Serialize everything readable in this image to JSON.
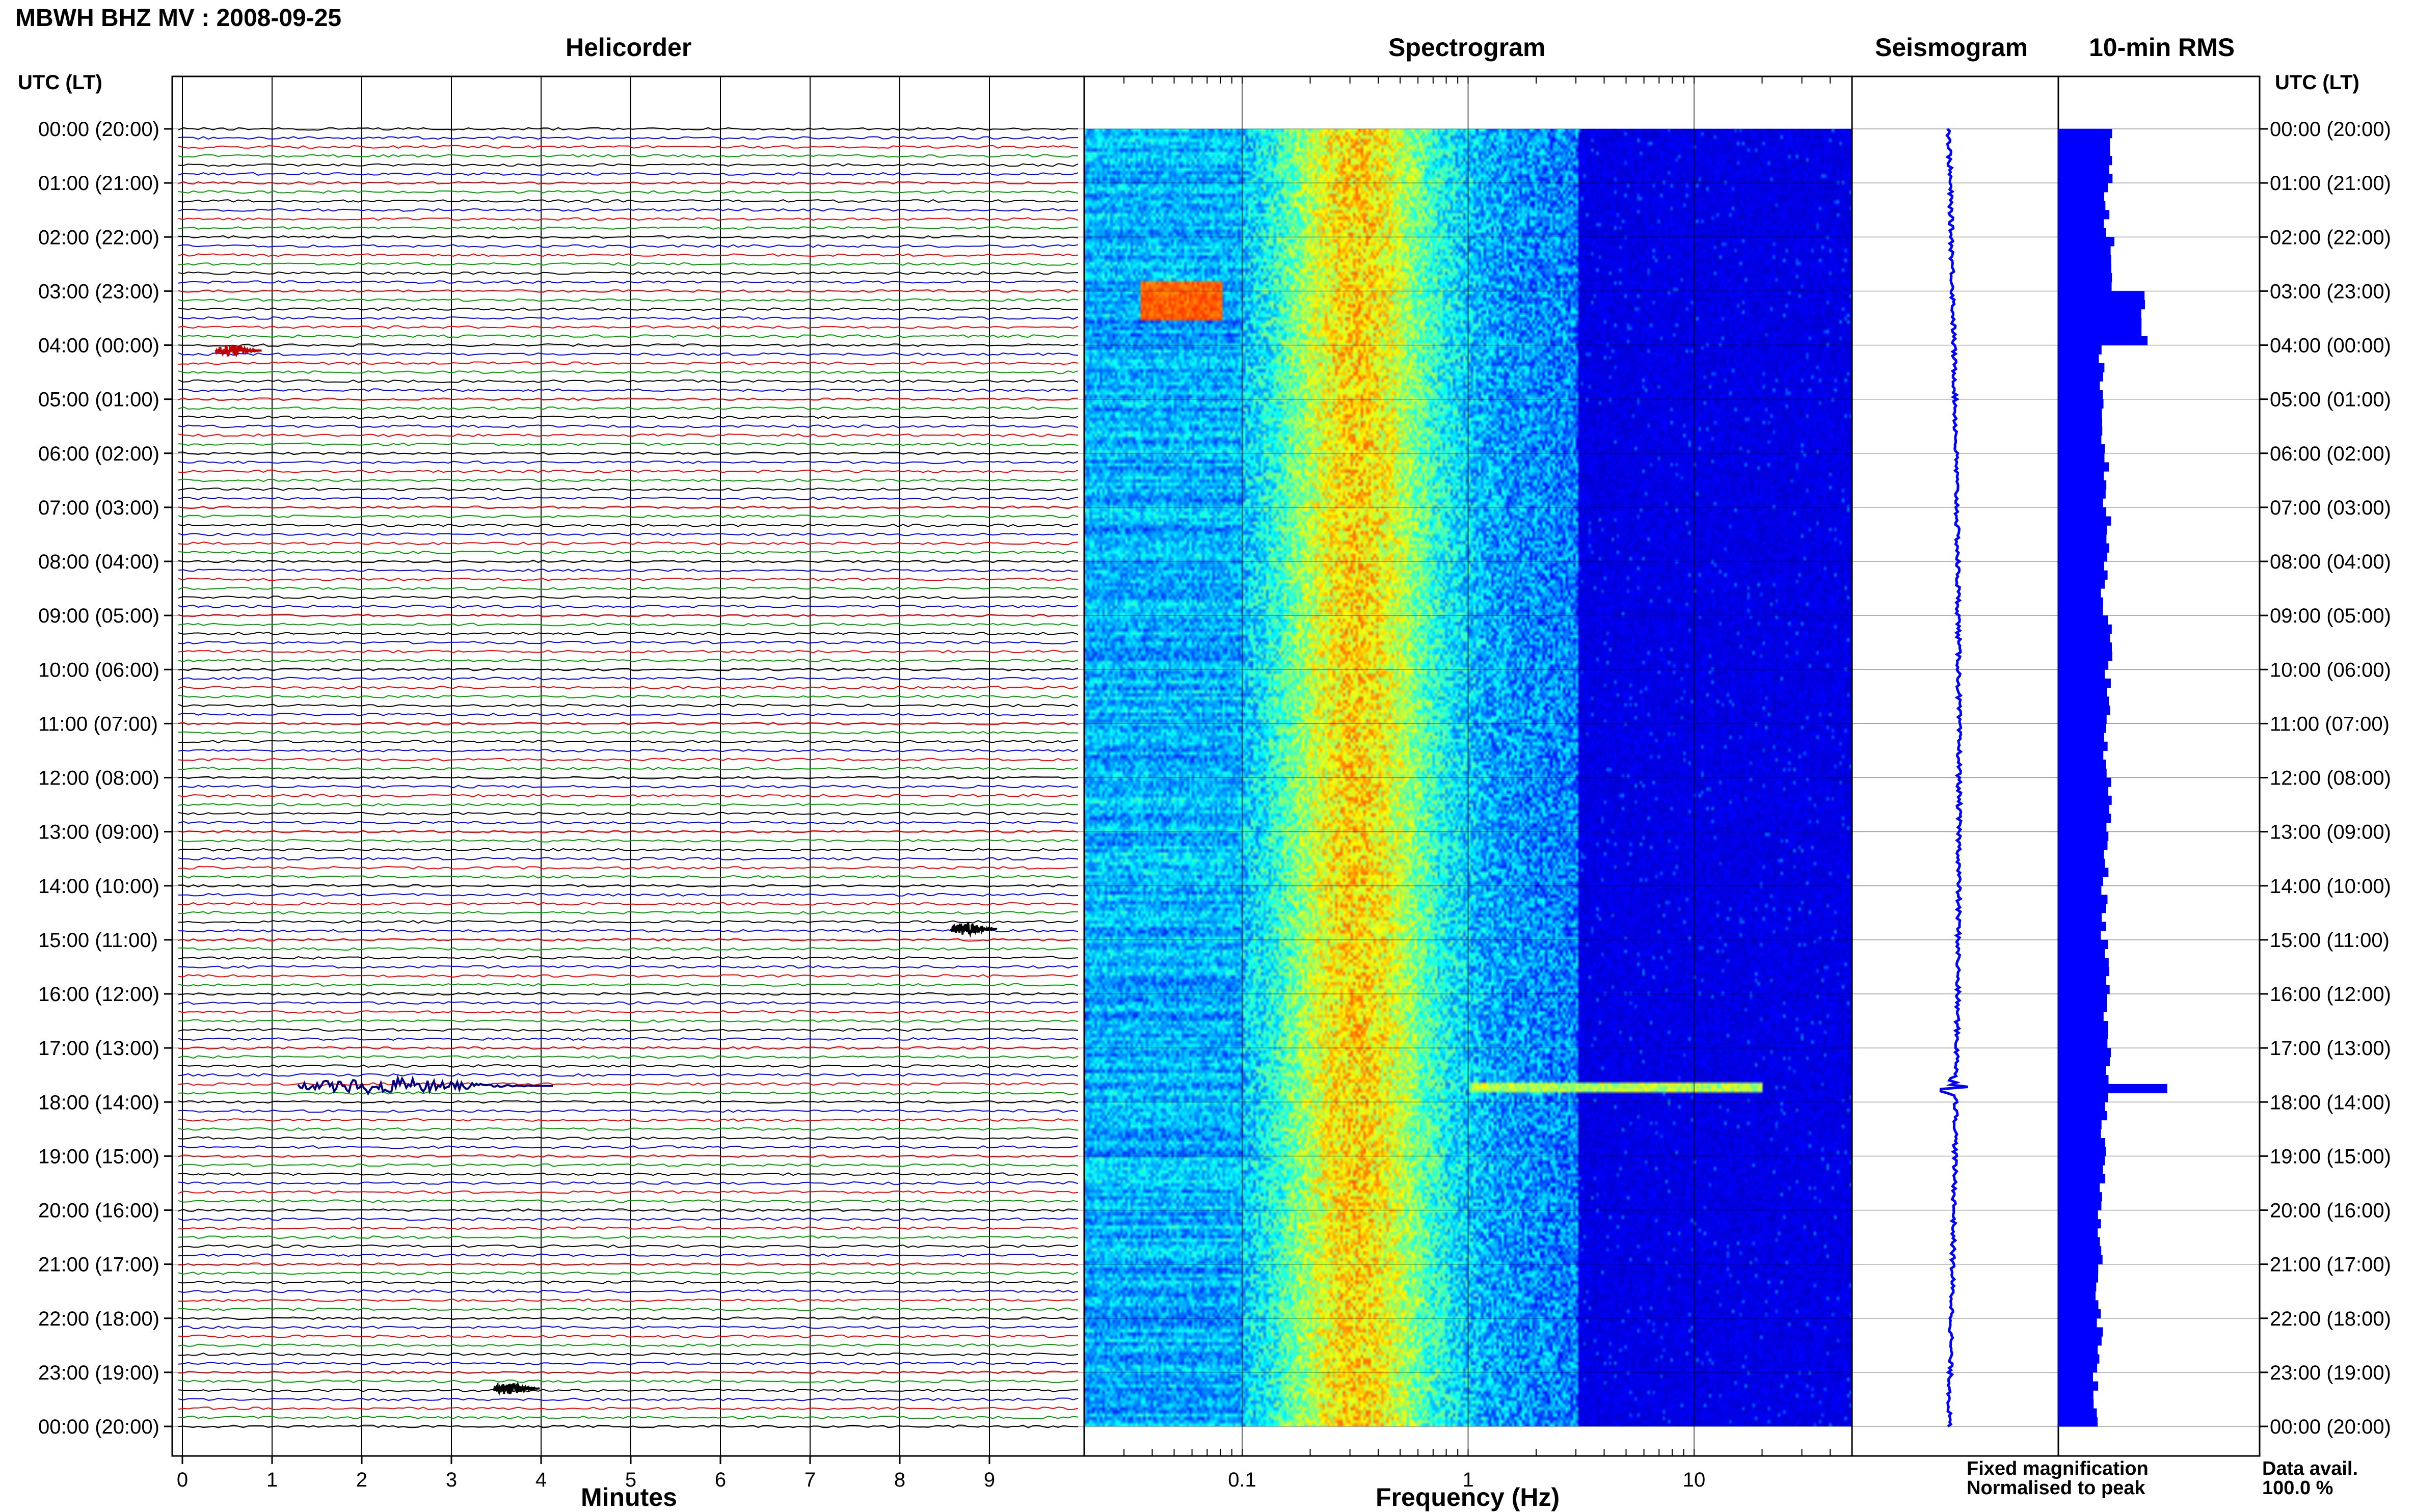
{
  "header": {
    "title": "MBWH BHZ MV : 2008-09-25"
  },
  "panels": {
    "helicorder": "Helicorder",
    "spectrogram": "Spectrogram",
    "seismogram": "Seismogram",
    "rms": "10-min RMS"
  },
  "axis": {
    "utc_header_left": "UTC (LT)",
    "utc_header_right": "UTC (LT)",
    "minutes_label": "Minutes",
    "frequency_label": "Frequency (Hz)"
  },
  "legend": {
    "fixed": "Fixed magnification",
    "normalised": "Normalised to peak",
    "fixed_color": "#0000ff",
    "normalised_color": "#ff0000"
  },
  "availability": {
    "label": "Data avail.",
    "value": "100.0 %"
  },
  "chart_data": [
    {
      "type": "line",
      "panel": "Helicorder",
      "xlabel": "Minutes",
      "x_ticks": [
        "0",
        "1",
        "2",
        "3",
        "4",
        "5",
        "6",
        "7",
        "8",
        "9"
      ],
      "xlim": [
        0,
        10
      ],
      "y_tick_labels": [
        "00:00 (20:00)",
        "01:00 (21:00)",
        "02:00 (22:00)",
        "03:00 (23:00)",
        "04:00 (00:00)",
        "05:00 (01:00)",
        "06:00 (02:00)",
        "07:00 (03:00)",
        "08:00 (04:00)",
        "09:00 (05:00)",
        "10:00 (06:00)",
        "11:00 (07:00)",
        "12:00 (08:00)",
        "13:00 (09:00)",
        "14:00 (10:00)",
        "15:00 (11:00)",
        "16:00 (12:00)",
        "17:00 (13:00)",
        "18:00 (14:00)",
        "19:00 (15:00)",
        "20:00 (16:00)",
        "21:00 (17:00)",
        "22:00 (18:00)",
        "23:00 (19:00)",
        "00:00 (20:00)"
      ],
      "trace_colors": [
        "#000000",
        "#0000ff",
        "#ff0000",
        "#00a000"
      ],
      "events": [
        {
          "utc_hour": 4.1,
          "minute": 0.5,
          "color": "#c00000",
          "amplitude": 3
        },
        {
          "utc_hour": 17.7,
          "minute": 2.0,
          "color": "#000080",
          "amplitude": 4
        },
        {
          "utc_hour": 14.8,
          "minute": 8.7,
          "color": "#000000",
          "amplitude": 3
        },
        {
          "utc_hour": 23.3,
          "minute": 3.6,
          "color": "#000000",
          "amplitude": 3
        }
      ]
    },
    {
      "type": "heatmap",
      "panel": "Spectrogram",
      "xlabel": "Frequency (Hz)",
      "xscale": "log",
      "x_ticks": [
        "0.1",
        "1",
        "10"
      ],
      "xlim": [
        0.02,
        50
      ],
      "peak_band_hz": [
        0.2,
        0.5
      ],
      "noise_floor_above_hz": 3
    },
    {
      "type": "line",
      "panel": "Seismogram",
      "peak_utc_hour": 17.7,
      "trace_color": "#0000ff"
    },
    {
      "type": "bar",
      "panel": "10-min RMS",
      "bar_color": "#0000ff",
      "utc_hours": [
        0,
        1,
        2,
        3,
        4,
        5,
        6,
        7,
        8,
        9,
        10,
        11,
        12,
        13,
        14,
        15,
        16,
        17,
        18,
        19,
        20,
        21,
        22,
        23
      ],
      "relative_values": [
        0.45,
        0.42,
        0.48,
        0.75,
        0.38,
        0.4,
        0.42,
        0.44,
        0.4,
        0.46,
        0.43,
        0.42,
        0.44,
        0.42,
        0.4,
        0.42,
        0.41,
        0.43,
        0.4,
        0.38,
        0.36,
        0.35,
        0.36,
        0.32
      ],
      "spike": {
        "utc_hour": 17.6,
        "relative_value": 0.95
      }
    }
  ]
}
